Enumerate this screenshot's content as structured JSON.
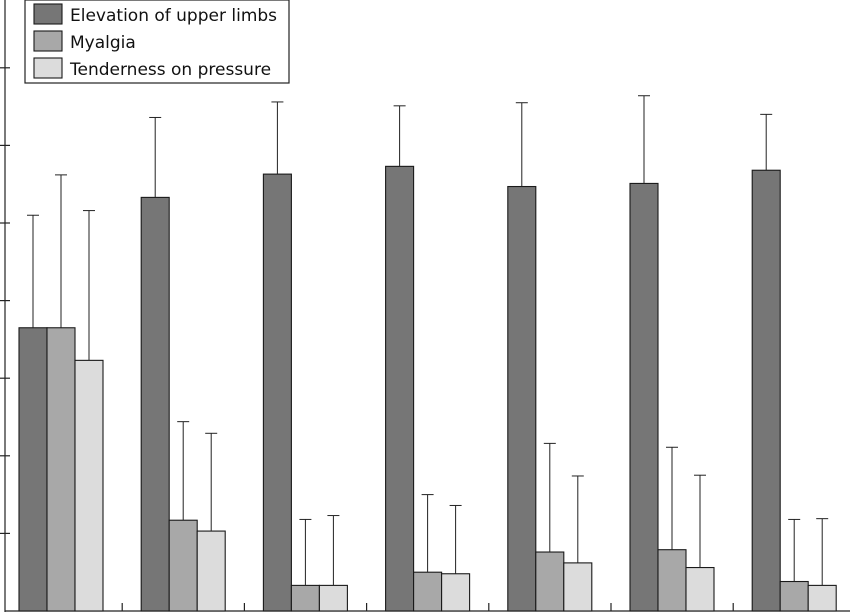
{
  "chart_data": {
    "type": "bar",
    "title": "",
    "xlabel": "",
    "ylabel": "",
    "ylim": [
      0,
      7
    ],
    "y_ticks": [
      1,
      2,
      3,
      4,
      5,
      6,
      7
    ],
    "categories": [
      "",
      "",
      "",
      "",
      "",
      "",
      ""
    ],
    "legend_position": "top-left",
    "series": [
      {
        "name": "Elevation of upper limbs",
        "color": "#767676",
        "values": [
          3.65,
          5.33,
          5.63,
          5.73,
          5.47,
          5.51,
          5.68
        ],
        "errors": [
          1.45,
          1.03,
          0.93,
          0.78,
          1.08,
          1.13,
          0.72
        ]
      },
      {
        "name": "Myalgia",
        "color": "#a8a8a8",
        "values": [
          3.65,
          1.17,
          0.33,
          0.5,
          0.76,
          0.79,
          0.38
        ],
        "errors": [
          1.97,
          1.27,
          0.85,
          1.0,
          1.4,
          1.32,
          0.8
        ]
      },
      {
        "name": "Tenderness on pressure",
        "color": "#dcdcdc",
        "values": [
          3.23,
          1.03,
          0.33,
          0.48,
          0.62,
          0.56,
          0.33
        ],
        "errors": [
          1.93,
          1.26,
          0.9,
          0.88,
          1.12,
          1.19,
          0.86
        ]
      }
    ]
  }
}
